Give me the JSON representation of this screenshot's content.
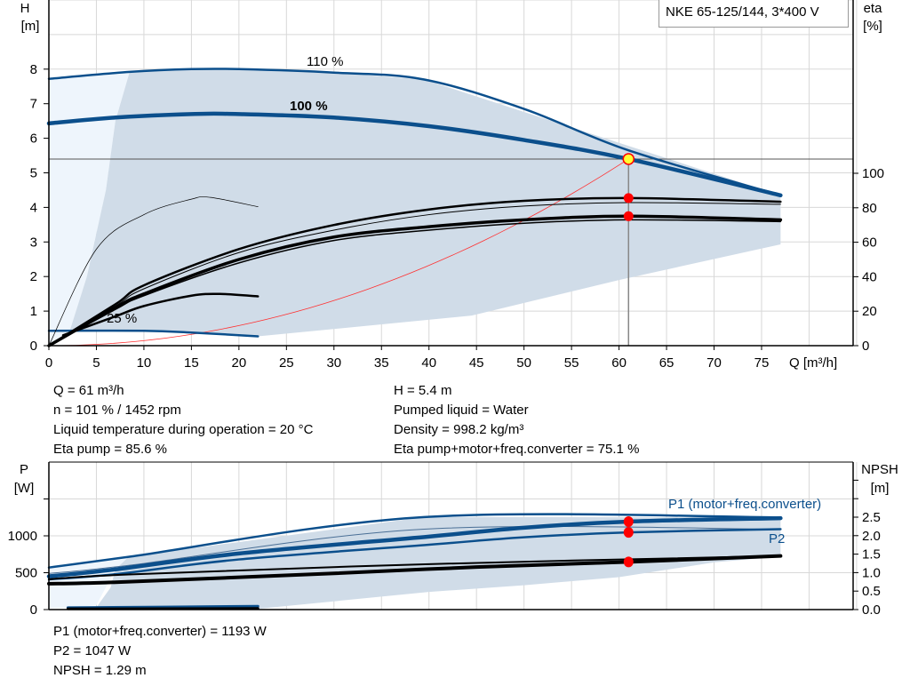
{
  "title": "NKE 65-125/144, 3*400 V",
  "colors": {
    "curve_blue": "#0b4f8c",
    "shade": "#d0dce8",
    "light_shade": "#eef5fc",
    "system_curve": "#ff3030",
    "op_point": "#ffff33",
    "dot": "#ff0000",
    "grid": "#d8d8d8"
  },
  "chart_data": [
    {
      "type": "line",
      "xlabel": "Q [m³/h]",
      "ylabel": "H\n[m]",
      "ylabel_lines": [
        "H",
        "[m]"
      ],
      "y2label_lines": [
        "eta",
        "[%]"
      ],
      "xlim": [
        0,
        84
      ],
      "ylim": [
        0,
        10
      ],
      "y2lim": [
        0,
        200
      ],
      "x_ticks": [
        0,
        5,
        10,
        15,
        20,
        25,
        30,
        35,
        40,
        45,
        50,
        55,
        60,
        65,
        70,
        75
      ],
      "y_ticks": [
        0,
        1,
        2,
        3,
        4,
        5,
        6,
        7,
        8
      ],
      "y2_ticks": [
        0,
        20,
        40,
        60,
        80,
        100
      ],
      "grid": true,
      "labels": {
        "speed_110": "110 %",
        "speed_100": "100 %",
        "speed_25": "25 %"
      },
      "series": [
        {
          "id": "h-110",
          "axis": "H",
          "points": [
            [
              0,
              7.72
            ],
            [
              8.5,
              7.92
            ],
            [
              15,
              8.0
            ],
            [
              20,
              8.0
            ],
            [
              30,
              7.9
            ],
            [
              39.5,
              7.7
            ],
            [
              50,
              6.85
            ],
            [
              61,
              5.65
            ],
            [
              77,
              4.35
            ]
          ]
        },
        {
          "id": "h-100",
          "axis": "H",
          "points": [
            [
              0,
              6.43
            ],
            [
              7,
              6.6
            ],
            [
              15,
              6.7
            ],
            [
              20,
              6.7
            ],
            [
              30,
              6.6
            ],
            [
              40,
              6.35
            ],
            [
              50,
              5.95
            ],
            [
              61,
              5.4
            ],
            [
              77,
              4.35
            ]
          ]
        },
        {
          "id": "h-25",
          "axis": "H",
          "points": [
            [
              0,
              0.43
            ],
            [
              10,
              0.43
            ],
            [
              15,
              0.38
            ],
            [
              22,
              0.27
            ]
          ]
        },
        {
          "id": "eta-pump",
          "axis": "eta",
          "points": [
            [
              0,
              0
            ],
            [
              7,
              24
            ],
            [
              10,
              35
            ],
            [
              20,
              56
            ],
            [
              30,
              70
            ],
            [
              40,
              79
            ],
            [
              50,
              84
            ],
            [
              61,
              85.6
            ],
            [
              77,
              83.5
            ]
          ]
        },
        {
          "id": "eta-pump-thin",
          "axis": "eta",
          "points": [
            [
              0,
              0
            ],
            [
              7,
              23
            ],
            [
              10,
              33
            ],
            [
              20,
              54
            ],
            [
              30,
              67
            ],
            [
              40,
              76
            ],
            [
              50,
              81
            ],
            [
              61,
              83
            ],
            [
              77,
              82
            ]
          ]
        },
        {
          "id": "eta-total",
          "axis": "eta",
          "points": [
            [
              0,
              0
            ],
            [
              7,
              22
            ],
            [
              10,
              30
            ],
            [
              20,
              50
            ],
            [
              30,
              63
            ],
            [
              40,
              69
            ],
            [
              50,
              73
            ],
            [
              61,
              75.1
            ],
            [
              77,
              73
            ]
          ]
        },
        {
          "id": "eta-total-thin",
          "axis": "eta",
          "points": [
            [
              0,
              0
            ],
            [
              7,
              21
            ],
            [
              10,
              29
            ],
            [
              20,
              48
            ],
            [
              30,
              61
            ],
            [
              40,
              67
            ],
            [
              50,
              71
            ],
            [
              61,
              73
            ],
            [
              77,
              72
            ]
          ]
        },
        {
          "id": "eta-low-speed",
          "axis": "eta",
          "points": [
            [
              0,
              0
            ],
            [
              5,
              56
            ],
            [
              10,
              76
            ],
            [
              15,
              85
            ],
            [
              17,
              86
            ],
            [
              22,
              80.6
            ]
          ]
        },
        {
          "id": "eta-low-speed-total",
          "axis": "eta",
          "points": [
            [
              1.5,
              6
            ],
            [
              7,
              17
            ],
            [
              10,
              23
            ],
            [
              15,
              29
            ],
            [
              18,
              30
            ],
            [
              22,
              28.6
            ]
          ]
        }
      ],
      "system_curve": {
        "q": 61,
        "h": 5.4
      },
      "operating_point": {
        "q": 61,
        "h": 5.4,
        "eta_pump": 85.6,
        "eta_total": 75.1
      }
    },
    {
      "type": "line",
      "ylabel_lines": [
        "P",
        "[W]"
      ],
      "y2label_lines": [
        "NPSH",
        "[m]"
      ],
      "xlim": [
        0,
        84
      ],
      "ylim": [
        0,
        2000
      ],
      "y2lim": [
        0,
        4
      ],
      "y_ticks": [
        0,
        500,
        1000
      ],
      "y_ticks_unlabeled": [
        1500
      ],
      "y2_ticks": [
        "0.0",
        "0.5",
        "1.0",
        "1.5",
        "2.0",
        "2.5"
      ],
      "y2_ticks_unlabeled": [
        3.0,
        3.5
      ],
      "grid": true,
      "labels": {
        "p1": "P1 (motor+freq.converter)",
        "p2": "P2"
      },
      "series": [
        {
          "id": "p1-110",
          "axis": "P",
          "points": [
            [
              0,
              570
            ],
            [
              8.4,
              715
            ],
            [
              39.5,
              1255
            ],
            [
              77,
              1250
            ]
          ]
        },
        {
          "id": "p2-110",
          "axis": "P",
          "points": [
            [
              0,
              490
            ],
            [
              8.4,
              600
            ],
            [
              39.5,
              1090
            ],
            [
              77,
              1090
            ]
          ]
        },
        {
          "id": "p1-100",
          "axis": "P",
          "points": [
            [
              0,
              450
            ],
            [
              7,
              545
            ],
            [
              20,
              760
            ],
            [
              40,
              990
            ],
            [
              50,
              1110
            ],
            [
              61,
              1193
            ],
            [
              77,
              1240
            ]
          ]
        },
        {
          "id": "p2-100",
          "axis": "P",
          "points": [
            [
              0,
              410
            ],
            [
              7,
              480
            ],
            [
              20,
              680
            ],
            [
              40,
              880
            ],
            [
              50,
              980
            ],
            [
              61,
              1047
            ],
            [
              77,
              1090
            ]
          ]
        },
        {
          "id": "npsh-thin",
          "axis": "NPSH",
          "points": [
            [
              0,
              0.82
            ],
            [
              8.4,
              0.95
            ],
            [
              40,
              1.23
            ],
            [
              77,
              1.45
            ]
          ]
        },
        {
          "id": "npsh",
          "axis": "NPSH",
          "points": [
            [
              0,
              0.7
            ],
            [
              7,
              0.74
            ],
            [
              30,
              0.98
            ],
            [
              45,
              1.15
            ],
            [
              61,
              1.29
            ],
            [
              77,
              1.45
            ]
          ]
        },
        {
          "id": "p-low",
          "axis": "P",
          "points": [
            [
              2,
              25
            ],
            [
              22,
              45
            ]
          ]
        },
        {
          "id": "npsh-low",
          "axis": "NPSH",
          "points": [
            [
              2,
              0.02
            ],
            [
              22,
              0.03
            ]
          ]
        }
      ],
      "operating_point": {
        "q": 61,
        "p1": 1193,
        "p2": 1047,
        "npsh": 1.29
      }
    }
  ],
  "info_top": {
    "left": [
      "Q = 61 m³/h",
      "n = 101 % / 1452 rpm",
      "Liquid temperature during operation = 20 °C",
      "Eta pump = 85.6 %"
    ],
    "right": [
      "H = 5.4 m",
      "Pumped liquid = Water",
      "Density = 998.2 kg/m³",
      "Eta pump+motor+freq.converter = 75.1 %"
    ]
  },
  "info_bottom": [
    "P1 (motor+freq.converter) = 1193 W",
    "P2 = 1047 W",
    "NPSH = 1.29 m"
  ]
}
